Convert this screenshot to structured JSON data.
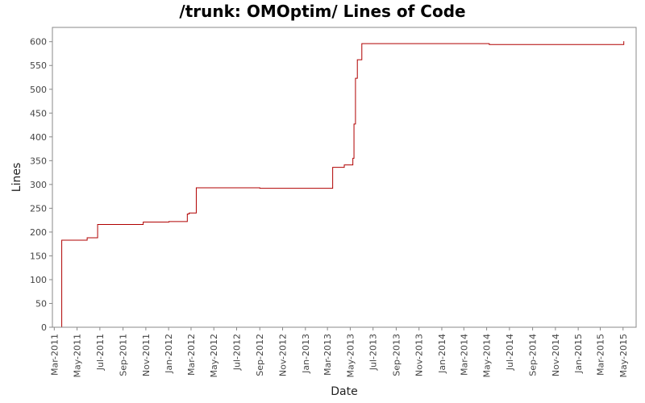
{
  "chart_data": {
    "type": "line",
    "title": "/trunk: OMOptim/ Lines of Code",
    "xlabel": "Date",
    "ylabel": "Lines",
    "ylim": [
      0,
      630
    ],
    "xlim": [
      "2011-02-24",
      "2015-06-05"
    ],
    "y_ticks": [
      0,
      50,
      100,
      150,
      200,
      250,
      300,
      350,
      400,
      450,
      500,
      550,
      600
    ],
    "x_ticks": [
      {
        "date": "2011-03-01",
        "label": "Mar-2011"
      },
      {
        "date": "2011-05-01",
        "label": "May-2011"
      },
      {
        "date": "2011-07-01",
        "label": "Jul-2011"
      },
      {
        "date": "2011-09-01",
        "label": "Sep-2011"
      },
      {
        "date": "2011-11-01",
        "label": "Nov-2011"
      },
      {
        "date": "2012-01-01",
        "label": "Jan-2012"
      },
      {
        "date": "2012-03-01",
        "label": "Mar-2012"
      },
      {
        "date": "2012-05-01",
        "label": "May-2012"
      },
      {
        "date": "2012-07-01",
        "label": "Jul-2012"
      },
      {
        "date": "2012-09-01",
        "label": "Sep-2012"
      },
      {
        "date": "2012-11-01",
        "label": "Nov-2012"
      },
      {
        "date": "2013-01-01",
        "label": "Jan-2013"
      },
      {
        "date": "2013-03-01",
        "label": "Mar-2013"
      },
      {
        "date": "2013-05-01",
        "label": "May-2013"
      },
      {
        "date": "2013-07-01",
        "label": "Jul-2013"
      },
      {
        "date": "2013-09-01",
        "label": "Sep-2013"
      },
      {
        "date": "2013-11-01",
        "label": "Nov-2013"
      },
      {
        "date": "2014-01-01",
        "label": "Jan-2014"
      },
      {
        "date": "2014-03-01",
        "label": "Mar-2014"
      },
      {
        "date": "2014-05-01",
        "label": "May-2014"
      },
      {
        "date": "2014-07-01",
        "label": "Jul-2014"
      },
      {
        "date": "2014-09-01",
        "label": "Sep-2014"
      },
      {
        "date": "2014-11-01",
        "label": "Nov-2014"
      },
      {
        "date": "2015-01-01",
        "label": "Jan-2015"
      },
      {
        "date": "2015-03-01",
        "label": "Mar-2015"
      },
      {
        "date": "2015-05-01",
        "label": "May-2015"
      }
    ],
    "grid": false,
    "line_color": "#b00000",
    "series": [
      {
        "step": true,
        "points": [
          {
            "x": "2011-03-20",
            "y": 0
          },
          {
            "x": "2011-03-21",
            "y": 183
          },
          {
            "x": "2011-05-28",
            "y": 188
          },
          {
            "x": "2011-06-25",
            "y": 216
          },
          {
            "x": "2011-10-25",
            "y": 221
          },
          {
            "x": "2012-01-02",
            "y": 222
          },
          {
            "x": "2012-02-20",
            "y": 238
          },
          {
            "x": "2012-02-25",
            "y": 240
          },
          {
            "x": "2012-03-15",
            "y": 293
          },
          {
            "x": "2012-09-01",
            "y": 292
          },
          {
            "x": "2013-03-15",
            "y": 336
          },
          {
            "x": "2013-04-15",
            "y": 341
          },
          {
            "x": "2013-05-08",
            "y": 355
          },
          {
            "x": "2013-05-11",
            "y": 427
          },
          {
            "x": "2013-05-15",
            "y": 523
          },
          {
            "x": "2013-05-20",
            "y": 562
          },
          {
            "x": "2013-06-01",
            "y": 596
          },
          {
            "x": "2014-05-08",
            "y": 594
          },
          {
            "x": "2015-05-03",
            "y": 601
          }
        ]
      }
    ]
  }
}
